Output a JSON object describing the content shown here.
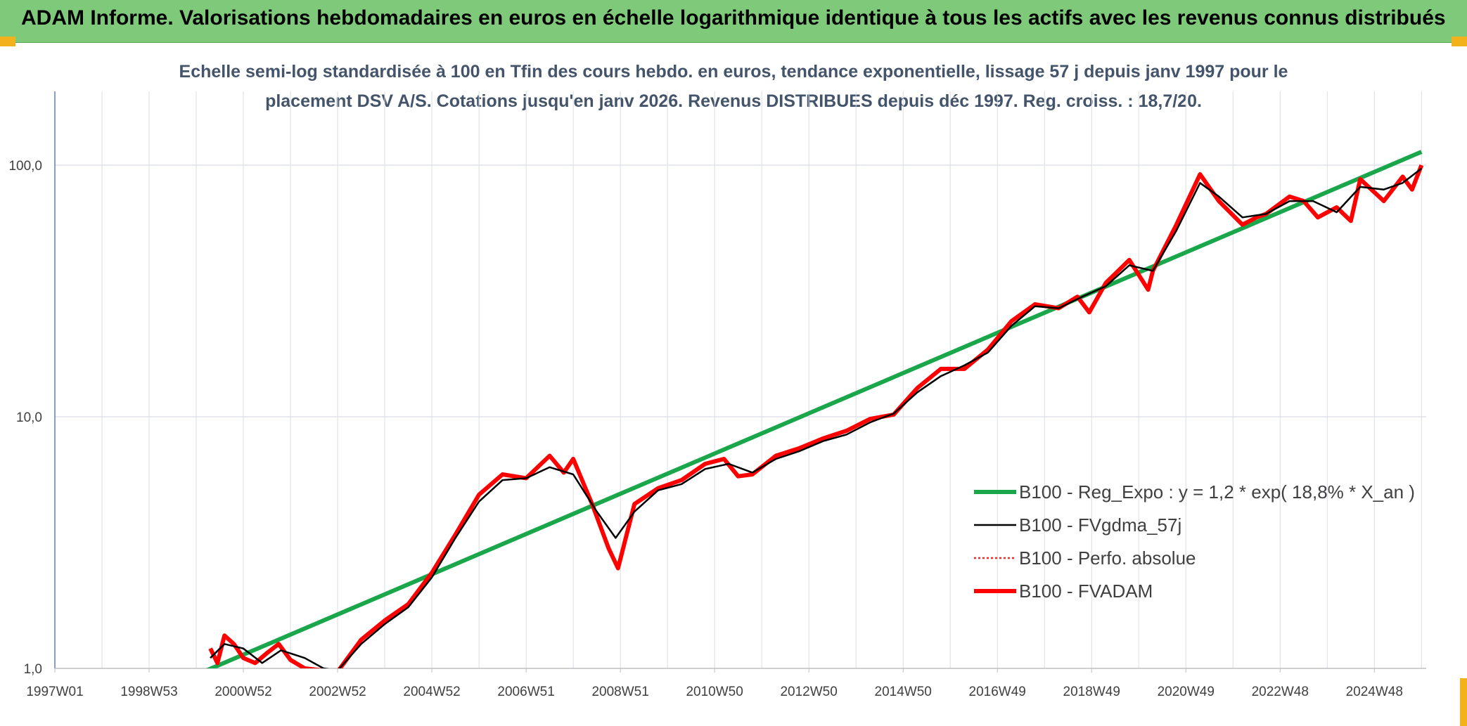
{
  "page_title": "ADAM Informe. Valorisations hebdomadaires en euros en échelle logarithmique identique à tous les actifs avec les revenus connus distribués",
  "chart_data": {
    "type": "line",
    "title_lines": [
      "Echelle semi-log standardisée à 100 en Tfin des cours hebdo. en euros, tendance exponentielle, lissage 57 j depuis janv 1997 pour le",
      "placement DSV A/S. Cotations jusqu'en janv 2026. Revenus DISTRIBUES depuis déc 1997. Reg. croiss. : 18,7/20."
    ],
    "y_scale": "log",
    "ylim": [
      1,
      100
    ],
    "y_ticks": [
      "1,0",
      "10,0",
      "100,0"
    ],
    "xlim": [
      1997.0,
      2026.1
    ],
    "x_tick_labels": [
      "1997W01",
      "1998W53",
      "2000W52",
      "2002W52",
      "2004W52",
      "2006W51",
      "2008W51",
      "2010W50",
      "2012W50",
      "2014W50",
      "2016W49",
      "2018W49",
      "2020W49",
      "2022W48",
      "2024W48"
    ],
    "grid": "vertical and horizontal",
    "legend_position": "center-right",
    "series": [
      {
        "name": "B100 - Reg_Expo : y = 1,2 * exp( 18,8% *  X_an )",
        "color": "#1aa64b",
        "style": "solid-thick",
        "x": [
          2000.1,
          2026.0
        ],
        "y": [
          0.96,
          113
        ]
      },
      {
        "name": "B100 - FVgdma_57j",
        "color": "#000000",
        "style": "solid-thin",
        "x": [
          2000.3,
          2000.6,
          2001.0,
          2001.4,
          2001.8,
          2002.3,
          2002.7,
          2003.0,
          2003.5,
          2004.0,
          2004.5,
          2005.0,
          2005.5,
          2006.0,
          2006.5,
          2007.0,
          2007.5,
          2008.0,
          2008.5,
          2008.9,
          2009.3,
          2009.8,
          2010.3,
          2010.8,
          2011.3,
          2011.8,
          2012.3,
          2012.8,
          2013.3,
          2013.8,
          2014.3,
          2014.8,
          2015.3,
          2015.8,
          2016.3,
          2016.8,
          2017.3,
          2017.8,
          2018.3,
          2018.8,
          2019.3,
          2019.8,
          2020.3,
          2020.8,
          2021.3,
          2021.7,
          2022.2,
          2022.7,
          2023.2,
          2023.7,
          2024.2,
          2024.7,
          2025.2,
          2025.6,
          2026.0
        ],
        "y": [
          1.1,
          1.25,
          1.2,
          1.05,
          1.18,
          1.1,
          1.0,
          0.98,
          1.25,
          1.5,
          1.75,
          2.3,
          3.3,
          4.6,
          5.6,
          5.7,
          6.3,
          5.9,
          4.2,
          3.3,
          4.2,
          5.1,
          5.4,
          6.2,
          6.5,
          6.0,
          6.8,
          7.3,
          8.0,
          8.5,
          9.5,
          10.3,
          12.5,
          14.5,
          16.0,
          18.0,
          23.0,
          27.5,
          27.0,
          30.0,
          33.0,
          40.0,
          38.0,
          55.0,
          85.0,
          75.0,
          62.0,
          64.0,
          72.0,
          72.0,
          65.0,
          82.0,
          80.0,
          85.0,
          97.0
        ]
      },
      {
        "name": "B100 - Perfo. absolue",
        "color": "#ff2020",
        "style": "dotted"
      },
      {
        "name": "B100 - FVADAM",
        "color": "#ff0000",
        "style": "solid-thick",
        "x": [
          2000.3,
          2000.45,
          2000.6,
          2000.8,
          2001.0,
          2001.25,
          2001.5,
          2001.75,
          2002.0,
          2002.3,
          2002.7,
          2003.0,
          2003.5,
          2004.0,
          2004.5,
          2005.0,
          2005.5,
          2006.0,
          2006.5,
          2007.0,
          2007.5,
          2007.8,
          2008.0,
          2008.4,
          2008.75,
          2008.95,
          2009.3,
          2009.8,
          2010.3,
          2010.8,
          2011.2,
          2011.5,
          2011.8,
          2012.3,
          2012.8,
          2013.3,
          2013.8,
          2014.3,
          2014.8,
          2015.3,
          2015.8,
          2016.3,
          2016.8,
          2017.3,
          2017.8,
          2018.3,
          2018.7,
          2018.95,
          2019.3,
          2019.8,
          2020.2,
          2020.3,
          2020.8,
          2021.3,
          2021.7,
          2022.2,
          2022.5,
          2022.7,
          2023.2,
          2023.5,
          2023.8,
          2024.2,
          2024.5,
          2024.7,
          2025.0,
          2025.2,
          2025.6,
          2025.8,
          2026.0
        ],
        "y": [
          1.2,
          1.05,
          1.35,
          1.25,
          1.1,
          1.05,
          1.15,
          1.25,
          1.08,
          1.0,
          0.98,
          0.97,
          1.3,
          1.55,
          1.8,
          2.4,
          3.4,
          4.9,
          5.9,
          5.7,
          7.0,
          6.0,
          6.8,
          4.5,
          3.0,
          2.5,
          4.5,
          5.2,
          5.6,
          6.5,
          6.8,
          5.8,
          5.9,
          7.0,
          7.5,
          8.2,
          8.8,
          9.8,
          10.2,
          13.0,
          15.5,
          15.5,
          18.5,
          24.0,
          28.0,
          27.0,
          30.0,
          26.0,
          34.0,
          42.0,
          32.0,
          38.0,
          58.0,
          92.0,
          72.0,
          58.0,
          62.0,
          64.0,
          75.0,
          72.0,
          62.0,
          68.0,
          60.0,
          88.0,
          78.0,
          72.0,
          90.0,
          80.0,
          100.0
        ]
      }
    ]
  }
}
